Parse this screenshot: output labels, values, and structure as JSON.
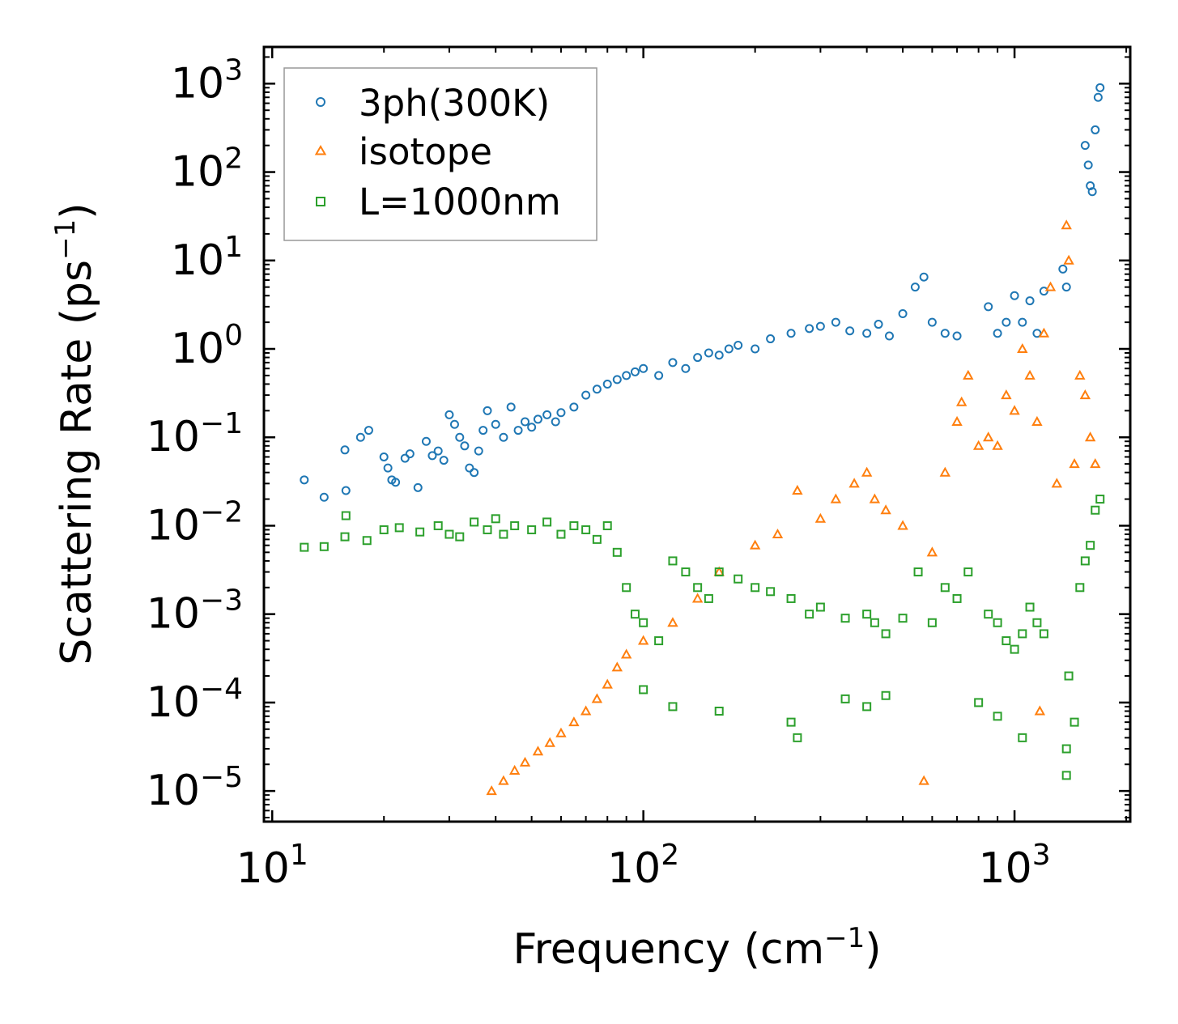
{
  "chart_data": {
    "type": "scatter",
    "title": "",
    "xlabel": {
      "base": "Frequency (cm",
      "sup": "−1",
      "end": ")"
    },
    "ylabel": {
      "base": "Scattering Rate (ps",
      "sup": "−1",
      "end": ")"
    },
    "xscale": "log",
    "yscale": "log",
    "xlim": [
      9.5,
      2050
    ],
    "ylim": [
      4.5e-06,
      2600
    ],
    "x_major_ticks": [
      {
        "value": 10,
        "base": "10",
        "exp": "1"
      },
      {
        "value": 100,
        "base": "10",
        "exp": "2"
      },
      {
        "value": 1000,
        "base": "10",
        "exp": "3"
      }
    ],
    "y_major_ticks": [
      {
        "value": 1e-05,
        "base": "10",
        "exp": "−5"
      },
      {
        "value": 0.0001,
        "base": "10",
        "exp": "−4"
      },
      {
        "value": 0.001,
        "base": "10",
        "exp": "−3"
      },
      {
        "value": 0.01,
        "base": "10",
        "exp": "−2"
      },
      {
        "value": 0.1,
        "base": "10",
        "exp": "−1"
      },
      {
        "value": 1,
        "base": "10",
        "exp": "0"
      },
      {
        "value": 10,
        "base": "10",
        "exp": "1"
      },
      {
        "value": 100,
        "base": "10",
        "exp": "2"
      },
      {
        "value": 1000,
        "base": "10",
        "exp": "3"
      }
    ],
    "legend": {
      "position": "top-left"
    },
    "series": [
      {
        "name": "3ph(300K)",
        "marker": "circle",
        "color": "#1f77b4",
        "points": [
          [
            12.2,
            0.033
          ],
          [
            13.8,
            0.021
          ],
          [
            15.7,
            0.072
          ],
          [
            15.8,
            0.025
          ],
          [
            17.3,
            0.1
          ],
          [
            18.2,
            0.12
          ],
          [
            20,
            0.06
          ],
          [
            20.5,
            0.045
          ],
          [
            21,
            0.033
          ],
          [
            21.5,
            0.031
          ],
          [
            22.8,
            0.058
          ],
          [
            23.5,
            0.065
          ],
          [
            24.7,
            0.027
          ],
          [
            26,
            0.09
          ],
          [
            27,
            0.062
          ],
          [
            28,
            0.07
          ],
          [
            29,
            0.055
          ],
          [
            30,
            0.18
          ],
          [
            31,
            0.14
          ],
          [
            32,
            0.1
          ],
          [
            33,
            0.08
          ],
          [
            34,
            0.045
          ],
          [
            35,
            0.04
          ],
          [
            36,
            0.07
          ],
          [
            37,
            0.12
          ],
          [
            38,
            0.2
          ],
          [
            40,
            0.14
          ],
          [
            42,
            0.1
          ],
          [
            44,
            0.22
          ],
          [
            46,
            0.12
          ],
          [
            48,
            0.15
          ],
          [
            50,
            0.13
          ],
          [
            52,
            0.16
          ],
          [
            55,
            0.18
          ],
          [
            58,
            0.15
          ],
          [
            60,
            0.19
          ],
          [
            65,
            0.22
          ],
          [
            70,
            0.3
          ],
          [
            75,
            0.35
          ],
          [
            80,
            0.4
          ],
          [
            85,
            0.45
          ],
          [
            90,
            0.5
          ],
          [
            95,
            0.55
          ],
          [
            100,
            0.6
          ],
          [
            110,
            0.5
          ],
          [
            120,
            0.7
          ],
          [
            130,
            0.6
          ],
          [
            140,
            0.8
          ],
          [
            150,
            0.9
          ],
          [
            160,
            0.85
          ],
          [
            170,
            1.0
          ],
          [
            180,
            1.1
          ],
          [
            200,
            1.0
          ],
          [
            220,
            1.3
          ],
          [
            250,
            1.5
          ],
          [
            280,
            1.7
          ],
          [
            300,
            1.8
          ],
          [
            330,
            2.0
          ],
          [
            360,
            1.6
          ],
          [
            400,
            1.5
          ],
          [
            430,
            1.9
          ],
          [
            460,
            1.4
          ],
          [
            500,
            2.5
          ],
          [
            540,
            5.0
          ],
          [
            570,
            6.5
          ],
          [
            600,
            2.0
          ],
          [
            650,
            1.5
          ],
          [
            700,
            1.4
          ],
          [
            850,
            3.0
          ],
          [
            900,
            1.5
          ],
          [
            950,
            2.0
          ],
          [
            1000,
            4.0
          ],
          [
            1050,
            2.0
          ],
          [
            1100,
            3.5
          ],
          [
            1150,
            1.5
          ],
          [
            1200,
            4.5
          ],
          [
            1350,
            8.0
          ],
          [
            1380,
            5.0
          ],
          [
            1550,
            200
          ],
          [
            1580,
            120
          ],
          [
            1600,
            70
          ],
          [
            1620,
            60
          ],
          [
            1650,
            300
          ],
          [
            1680,
            700
          ],
          [
            1700,
            900
          ]
        ]
      },
      {
        "name": "isotope",
        "marker": "triangle",
        "color": "#ff7f0e",
        "points": [
          [
            39,
            1e-05
          ],
          [
            42,
            1.3e-05
          ],
          [
            45,
            1.7e-05
          ],
          [
            48,
            2.1e-05
          ],
          [
            52,
            2.8e-05
          ],
          [
            56,
            3.5e-05
          ],
          [
            60,
            4.5e-05
          ],
          [
            65,
            6e-05
          ],
          [
            70,
            8e-05
          ],
          [
            75,
            0.00011
          ],
          [
            80,
            0.00016
          ],
          [
            85,
            0.00025
          ],
          [
            90,
            0.00035
          ],
          [
            100,
            0.0005
          ],
          [
            120,
            0.0008
          ],
          [
            140,
            0.0015
          ],
          [
            160,
            0.003
          ],
          [
            200,
            0.006
          ],
          [
            230,
            0.008
          ],
          [
            260,
            0.025
          ],
          [
            300,
            0.012
          ],
          [
            330,
            0.02
          ],
          [
            370,
            0.03
          ],
          [
            400,
            0.04
          ],
          [
            420,
            0.02
          ],
          [
            450,
            0.015
          ],
          [
            500,
            0.01
          ],
          [
            600,
            0.005
          ],
          [
            650,
            0.04
          ],
          [
            700,
            0.15
          ],
          [
            720,
            0.25
          ],
          [
            750,
            0.5
          ],
          [
            800,
            0.08
          ],
          [
            850,
            0.1
          ],
          [
            900,
            0.08
          ],
          [
            950,
            0.3
          ],
          [
            1000,
            0.2
          ],
          [
            1050,
            1.0
          ],
          [
            1100,
            0.5
          ],
          [
            1150,
            0.15
          ],
          [
            1200,
            1.5
          ],
          [
            1250,
            5.0
          ],
          [
            1300,
            0.03
          ],
          [
            1380,
            25
          ],
          [
            1400,
            10
          ],
          [
            1450,
            0.05
          ],
          [
            1500,
            0.5
          ],
          [
            1550,
            0.3
          ],
          [
            1600,
            0.1
          ],
          [
            1650,
            0.05
          ],
          [
            570,
            1.3e-05
          ],
          [
            1170,
            8e-05
          ]
        ]
      },
      {
        "name": "L=1000nm",
        "marker": "square",
        "color": "#2ca02c",
        "points": [
          [
            12.2,
            0.0057
          ],
          [
            13.8,
            0.0058
          ],
          [
            15.7,
            0.0075
          ],
          [
            15.8,
            0.013
          ],
          [
            18,
            0.0068
          ],
          [
            20,
            0.009
          ],
          [
            22,
            0.0095
          ],
          [
            25,
            0.0085
          ],
          [
            28,
            0.01
          ],
          [
            30,
            0.008
          ],
          [
            32,
            0.0075
          ],
          [
            35,
            0.011
          ],
          [
            38,
            0.009
          ],
          [
            40,
            0.012
          ],
          [
            42,
            0.008
          ],
          [
            45,
            0.01
          ],
          [
            50,
            0.009
          ],
          [
            55,
            0.011
          ],
          [
            60,
            0.008
          ],
          [
            65,
            0.01
          ],
          [
            70,
            0.009
          ],
          [
            75,
            0.007
          ],
          [
            80,
            0.01
          ],
          [
            85,
            0.005
          ],
          [
            90,
            0.002
          ],
          [
            95,
            0.001
          ],
          [
            100,
            0.0008
          ],
          [
            110,
            0.0005
          ],
          [
            120,
            0.004
          ],
          [
            130,
            0.003
          ],
          [
            140,
            0.002
          ],
          [
            150,
            0.0015
          ],
          [
            160,
            0.003
          ],
          [
            180,
            0.0025
          ],
          [
            200,
            0.002
          ],
          [
            220,
            0.0018
          ],
          [
            250,
            0.0015
          ],
          [
            280,
            0.001
          ],
          [
            300,
            0.0012
          ],
          [
            350,
            0.0009
          ],
          [
            400,
            0.001
          ],
          [
            420,
            0.0008
          ],
          [
            450,
            0.0006
          ],
          [
            500,
            0.0009
          ],
          [
            550,
            0.003
          ],
          [
            600,
            0.0008
          ],
          [
            650,
            0.002
          ],
          [
            700,
            0.0015
          ],
          [
            750,
            0.003
          ],
          [
            850,
            0.001
          ],
          [
            900,
            0.0008
          ],
          [
            950,
            0.0005
          ],
          [
            1000,
            0.0004
          ],
          [
            1050,
            0.0006
          ],
          [
            1100,
            0.0012
          ],
          [
            1150,
            0.0008
          ],
          [
            1200,
            0.0006
          ],
          [
            1380,
            3e-05
          ],
          [
            1400,
            0.0002
          ],
          [
            1450,
            6e-05
          ],
          [
            1500,
            0.002
          ],
          [
            1550,
            0.004
          ],
          [
            1600,
            0.006
          ],
          [
            1650,
            0.015
          ],
          [
            1700,
            0.02
          ],
          [
            100,
            0.00014
          ],
          [
            120,
            9e-05
          ],
          [
            160,
            8e-05
          ],
          [
            250,
            6e-05
          ],
          [
            260,
            4e-05
          ],
          [
            350,
            0.00011
          ],
          [
            400,
            9e-05
          ],
          [
            450,
            0.00012
          ],
          [
            800,
            0.0001
          ],
          [
            900,
            7e-05
          ],
          [
            1050,
            4e-05
          ],
          [
            1380,
            1.5e-05
          ]
        ]
      }
    ]
  }
}
